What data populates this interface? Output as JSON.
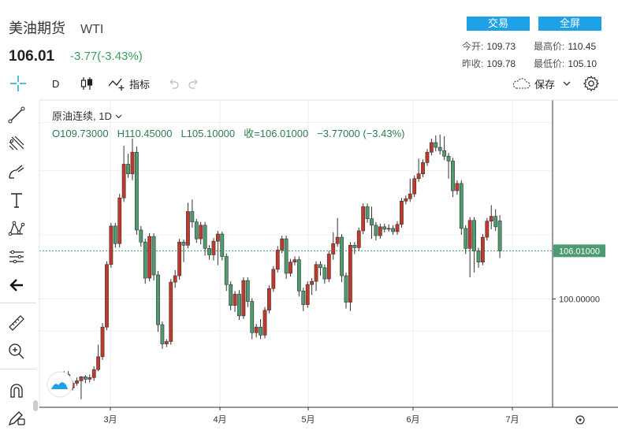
{
  "header": {
    "name": "美油期货",
    "symbol": "WTI",
    "price": "106.01",
    "change": "-3.77(-3.43%)",
    "trade_label": "交易",
    "fullscreen_label": "全屏"
  },
  "stats": {
    "open_label": "今开:",
    "open": "109.73",
    "high_label": "最高价:",
    "high": "110.45",
    "prev_label": "昨收:",
    "prev": "109.78",
    "low_label": "最低价:",
    "low": "105.10"
  },
  "toolbar": {
    "interval": "D",
    "indicator_label": "指标",
    "save_label": "保存"
  },
  "legend": {
    "series_name": "原油连续",
    "timeframe": "1D",
    "open": "O109.73000",
    "high": "H110.45000",
    "low": "L105.10000",
    "close": "收=106.01000",
    "change": "−3.77000 (−3.43%)"
  },
  "colors": {
    "up": "#c0392b",
    "down": "#4d9b6f",
    "accent": "#1ea1e6",
    "price_tag": "#4d9b6f"
  },
  "icons": [
    "crosshair-icon",
    "candles-icon",
    "indicator-icon",
    "undo-icon",
    "redo-icon",
    "cloud-icon",
    "settings-icon",
    "line-tool-icon",
    "pitchfork-icon",
    "brush-icon",
    "text-icon",
    "pattern-icon",
    "measure-icon",
    "back-arrow-icon",
    "ruler-icon",
    "zoom-icon",
    "magnet-icon",
    "pencil-lock-icon",
    "logo-icon"
  ],
  "chart_data": {
    "type": "candlestick",
    "x_ticks": [
      "3月",
      "4月",
      "5月",
      "6月",
      "7月"
    ],
    "y_ticks": [
      {
        "label": "100.00000",
        "value": 100
      }
    ],
    "last_price_label": "106.01000",
    "last_price": 106.01,
    "ylim": [
      86.5,
      124.8
    ],
    "candles": [
      [
        0,
        88.6,
        89.0,
        88.2,
        89.4
      ],
      [
        1,
        89.0,
        90.2,
        88.8,
        90.6
      ],
      [
        2,
        90.2,
        88.3,
        87.9,
        90.6
      ],
      [
        3,
        88.3,
        90.6,
        88.1,
        91.0
      ],
      [
        4,
        90.6,
        88.9,
        88.5,
        91.0
      ],
      [
        5,
        88.9,
        89.5,
        88.6,
        89.8
      ],
      [
        6,
        89.5,
        89.8,
        89.2,
        90.2
      ],
      [
        7,
        89.8,
        90.3,
        87.5,
        90.4
      ],
      [
        8,
        90.3,
        90.0,
        89.5,
        90.5
      ],
      [
        9,
        90.0,
        90.2,
        89.6,
        90.6
      ],
      [
        10,
        90.2,
        91.2,
        89.8,
        91.6
      ],
      [
        11,
        91.2,
        92.8,
        91.0,
        94.3
      ],
      [
        12,
        92.8,
        96.5,
        92.4,
        97.0
      ],
      [
        13,
        96.5,
        104.3,
        96.1,
        104.7
      ],
      [
        14,
        104.3,
        109.1,
        103.9,
        109.5
      ],
      [
        15,
        109.1,
        106.9,
        106.4,
        109.5
      ],
      [
        16,
        106.9,
        112.6,
        106.4,
        113.1
      ],
      [
        17,
        112.6,
        116.8,
        112.1,
        119.1
      ],
      [
        18,
        116.8,
        115.6,
        115.1,
        118.1
      ],
      [
        19,
        115.6,
        118.3,
        114.8,
        120.0
      ],
      [
        20,
        118.3,
        108.6,
        108.0,
        119.0
      ],
      [
        21,
        108.6,
        107.1,
        106.5,
        109.1
      ],
      [
        22,
        107.1,
        102.6,
        101.9,
        107.5
      ],
      [
        23,
        102.6,
        107.8,
        102.2,
        108.2
      ],
      [
        24,
        107.8,
        103.0,
        102.3,
        108.2
      ],
      [
        25,
        103.0,
        96.8,
        95.9,
        103.5
      ],
      [
        26,
        96.8,
        94.4,
        93.8,
        97.2
      ],
      [
        27,
        94.4,
        94.7,
        94.0,
        95.0
      ],
      [
        28,
        94.7,
        102.1,
        94.3,
        102.5
      ],
      [
        29,
        102.1,
        102.9,
        101.4,
        103.6
      ],
      [
        30,
        102.9,
        107.1,
        102.4,
        107.5
      ],
      [
        31,
        107.1,
        106.7,
        104.6,
        107.4
      ],
      [
        32,
        106.7,
        110.9,
        106.3,
        112.0
      ],
      [
        33,
        110.9,
        109.6,
        108.9,
        112.4
      ],
      [
        34,
        109.6,
        107.5,
        107.0,
        110.0
      ],
      [
        35,
        107.5,
        109.2,
        106.8,
        109.6
      ],
      [
        36,
        109.2,
        106.3,
        105.4,
        109.6
      ],
      [
        37,
        106.3,
        105.5,
        104.9,
        106.7
      ],
      [
        38,
        105.5,
        107.2,
        104.8,
        107.6
      ],
      [
        39,
        107.2,
        108.1,
        104.2,
        108.5
      ],
      [
        40,
        108.1,
        105.3,
        104.8,
        108.4
      ],
      [
        41,
        105.3,
        101.8,
        101.0,
        105.7
      ],
      [
        42,
        101.8,
        99.2,
        98.6,
        102.2
      ],
      [
        43,
        99.2,
        100.6,
        98.4,
        101.0
      ],
      [
        44,
        100.6,
        97.9,
        97.4,
        101.1
      ],
      [
        45,
        97.9,
        102.3,
        97.5,
        102.7
      ],
      [
        46,
        102.3,
        99.7,
        99.0,
        102.7
      ],
      [
        47,
        99.7,
        95.8,
        95.0,
        100.1
      ],
      [
        48,
        95.8,
        96.5,
        95.2,
        96.9
      ],
      [
        49,
        96.5,
        95.5,
        95.0,
        97.5
      ],
      [
        50,
        95.5,
        98.6,
        95.1,
        99.0
      ],
      [
        51,
        98.6,
        101.3,
        98.2,
        101.7
      ],
      [
        52,
        101.3,
        103.7,
        100.9,
        104.1
      ],
      [
        53,
        103.7,
        106.1,
        103.3,
        106.6
      ],
      [
        54,
        106.1,
        107.5,
        105.7,
        107.9
      ],
      [
        55,
        107.5,
        103.2,
        102.5,
        107.9
      ],
      [
        56,
        103.2,
        104.6,
        102.8,
        105.0
      ],
      [
        57,
        104.6,
        104.9,
        104.2,
        105.3
      ],
      [
        58,
        104.9,
        101.0,
        100.3,
        105.3
      ],
      [
        59,
        101.0,
        99.3,
        98.5,
        101.4
      ],
      [
        60,
        99.3,
        101.8,
        98.9,
        102.2
      ],
      [
        61,
        101.8,
        102.2,
        100.5,
        102.6
      ],
      [
        62,
        102.2,
        104.3,
        101.0,
        104.7
      ],
      [
        63,
        104.3,
        103.9,
        102.9,
        104.7
      ],
      [
        64,
        103.9,
        102.5,
        101.9,
        104.3
      ],
      [
        65,
        102.5,
        105.6,
        102.1,
        106.0
      ],
      [
        66,
        105.6,
        106.9,
        104.9,
        108.3
      ],
      [
        67,
        106.9,
        107.7,
        106.5,
        110.1
      ],
      [
        68,
        107.7,
        102.9,
        102.1,
        108.1
      ],
      [
        69,
        102.9,
        99.6,
        98.8,
        103.3
      ],
      [
        70,
        99.6,
        106.7,
        98.5,
        107.1
      ],
      [
        71,
        106.7,
        106.4,
        105.6,
        107.1
      ],
      [
        72,
        106.4,
        108.5,
        106.0,
        108.9
      ],
      [
        73,
        108.5,
        111.5,
        108.1,
        111.9
      ],
      [
        74,
        111.5,
        110.0,
        109.5,
        111.9
      ],
      [
        75,
        110.0,
        109.2,
        107.5,
        111.5
      ],
      [
        76,
        109.2,
        107.9,
        107.3,
        109.6
      ],
      [
        77,
        107.9,
        109.0,
        107.5,
        109.4
      ],
      [
        78,
        109.0,
        108.7,
        108.3,
        109.4
      ],
      [
        79,
        108.7,
        108.8,
        108.4,
        109.3
      ],
      [
        80,
        108.8,
        108.4,
        108.0,
        109.2
      ],
      [
        81,
        108.4,
        109.3,
        108.0,
        109.7
      ],
      [
        82,
        109.3,
        112.2,
        108.9,
        112.6
      ],
      [
        83,
        112.2,
        112.5,
        111.8,
        112.9
      ],
      [
        84,
        112.5,
        113.1,
        112.1,
        115.0
      ],
      [
        85,
        113.1,
        115.0,
        112.7,
        115.4
      ],
      [
        86,
        115.0,
        115.6,
        114.6,
        117.5
      ],
      [
        87,
        115.6,
        117.0,
        115.2,
        117.4
      ],
      [
        88,
        117.0,
        118.3,
        116.6,
        118.7
      ],
      [
        89,
        118.3,
        119.5,
        117.9,
        120.0
      ],
      [
        90,
        119.5,
        118.9,
        118.4,
        120.4
      ],
      [
        91,
        118.9,
        118.5,
        118.0,
        120.5
      ],
      [
        92,
        118.5,
        117.8,
        117.3,
        120.3
      ],
      [
        93,
        117.8,
        117.2,
        115.0,
        118.2
      ],
      [
        94,
        117.2,
        113.5,
        112.7,
        117.6
      ],
      [
        95,
        113.5,
        114.4,
        113.0,
        114.8
      ],
      [
        96,
        114.4,
        108.8,
        108.0,
        114.8
      ],
      [
        97,
        108.8,
        106.3,
        105.6,
        109.2
      ],
      [
        98,
        106.3,
        109.8,
        102.7,
        110.2
      ],
      [
        99,
        109.8,
        106.0,
        103.3,
        110.2
      ],
      [
        100,
        106.0,
        104.6,
        103.9,
        106.4
      ],
      [
        101,
        104.6,
        107.7,
        104.2,
        108.1
      ],
      [
        102,
        107.7,
        109.7,
        107.3,
        110.1
      ],
      [
        103,
        109.7,
        110.3,
        108.7,
        111.7
      ],
      [
        104,
        110.3,
        109.0,
        108.5,
        111.2
      ],
      [
        105,
        109.73,
        106.01,
        105.1,
        110.45
      ]
    ]
  }
}
